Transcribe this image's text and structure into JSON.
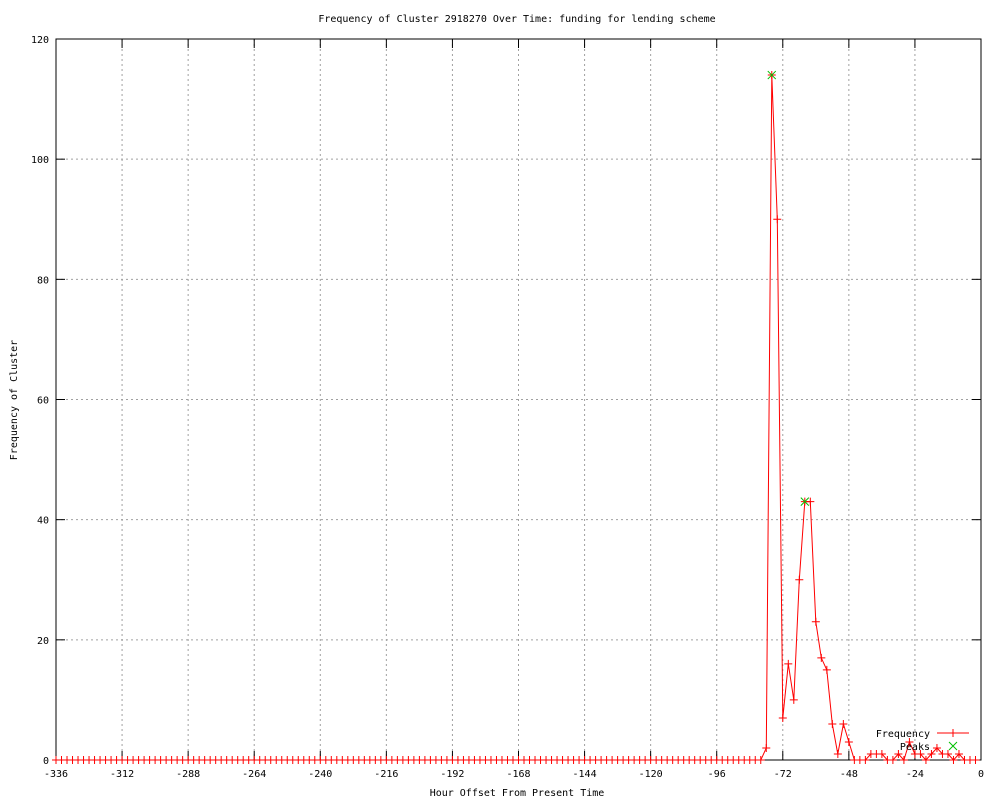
{
  "chart_data": {
    "type": "line",
    "title": "Frequency of Cluster 2918270 Over Time: funding for lending scheme",
    "xlabel": "Hour Offset From Present Time",
    "ylabel": "Frequency of Cluster",
    "xlim": [
      -336,
      0
    ],
    "ylim": [
      0,
      120
    ],
    "xticks": [
      -336,
      -312,
      -288,
      -264,
      -240,
      -216,
      -192,
      -168,
      -144,
      -120,
      -96,
      -72,
      -48,
      -24,
      0
    ],
    "yticks": [
      0,
      20,
      40,
      60,
      80,
      100,
      120
    ],
    "grid": true,
    "legend_position": "bottom-right",
    "series": [
      {
        "name": "Frequency",
        "color": "#ff0000",
        "style": "lines+crosses",
        "x": [
          -336,
          -334,
          -332,
          -330,
          -328,
          -326,
          -324,
          -322,
          -320,
          -318,
          -316,
          -314,
          -312,
          -310,
          -308,
          -306,
          -304,
          -302,
          -300,
          -298,
          -296,
          -294,
          -292,
          -290,
          -288,
          -286,
          -284,
          -282,
          -280,
          -278,
          -276,
          -274,
          -272,
          -270,
          -268,
          -266,
          -264,
          -262,
          -260,
          -258,
          -256,
          -254,
          -252,
          -250,
          -248,
          -246,
          -244,
          -242,
          -240,
          -238,
          -236,
          -234,
          -232,
          -230,
          -228,
          -226,
          -224,
          -222,
          -220,
          -218,
          -216,
          -214,
          -212,
          -210,
          -208,
          -206,
          -204,
          -202,
          -200,
          -198,
          -196,
          -194,
          -192,
          -190,
          -188,
          -186,
          -184,
          -182,
          -180,
          -178,
          -176,
          -174,
          -172,
          -170,
          -168,
          -166,
          -164,
          -162,
          -160,
          -158,
          -156,
          -154,
          -152,
          -150,
          -148,
          -146,
          -144,
          -142,
          -140,
          -138,
          -136,
          -134,
          -132,
          -130,
          -128,
          -126,
          -124,
          -122,
          -120,
          -118,
          -116,
          -114,
          -112,
          -110,
          -108,
          -106,
          -104,
          -102,
          -100,
          -98,
          -96,
          -94,
          -92,
          -90,
          -88,
          -86,
          -84,
          -82,
          -80,
          -78,
          -76,
          -74,
          -72,
          -70,
          -68,
          -66,
          -64,
          -62,
          -60,
          -58,
          -56,
          -54,
          -52,
          -50,
          -48,
          -46,
          -44,
          -42,
          -40,
          -38,
          -36,
          -34,
          -32,
          -30,
          -28,
          -26,
          -24,
          -22,
          -20,
          -18,
          -16,
          -14,
          -12,
          -10,
          -8,
          -6,
          -4,
          -2
        ],
        "y": [
          0,
          0,
          0,
          0,
          0,
          0,
          0,
          0,
          0,
          0,
          0,
          0,
          0,
          0,
          0,
          0,
          0,
          0,
          0,
          0,
          0,
          0,
          0,
          0,
          0,
          0,
          0,
          0,
          0,
          0,
          0,
          0,
          0,
          0,
          0,
          0,
          0,
          0,
          0,
          0,
          0,
          0,
          0,
          0,
          0,
          0,
          0,
          0,
          0,
          0,
          0,
          0,
          0,
          0,
          0,
          0,
          0,
          0,
          0,
          0,
          0,
          0,
          0,
          0,
          0,
          0,
          0,
          0,
          0,
          0,
          0,
          0,
          0,
          0,
          0,
          0,
          0,
          0,
          0,
          0,
          0,
          0,
          0,
          0,
          0,
          0,
          0,
          0,
          0,
          0,
          0,
          0,
          0,
          0,
          0,
          0,
          0,
          0,
          0,
          0,
          0,
          0,
          0,
          0,
          0,
          0,
          0,
          0,
          0,
          0,
          0,
          0,
          0,
          0,
          0,
          0,
          0,
          0,
          0,
          0,
          0,
          0,
          0,
          0,
          0,
          0,
          0,
          0,
          0,
          2,
          114,
          90,
          7,
          16,
          10,
          30,
          43,
          43,
          23,
          17,
          15,
          6,
          1,
          6,
          3,
          0,
          0,
          0,
          1,
          1,
          1,
          0,
          0,
          1,
          0,
          3,
          1,
          1,
          0,
          1,
          2,
          1,
          1,
          0,
          1,
          0,
          0,
          0
        ]
      },
      {
        "name": "Peaks",
        "color": "#00c000",
        "style": "points-x",
        "x": [
          -76,
          -64
        ],
        "y": [
          114,
          43
        ]
      }
    ]
  }
}
